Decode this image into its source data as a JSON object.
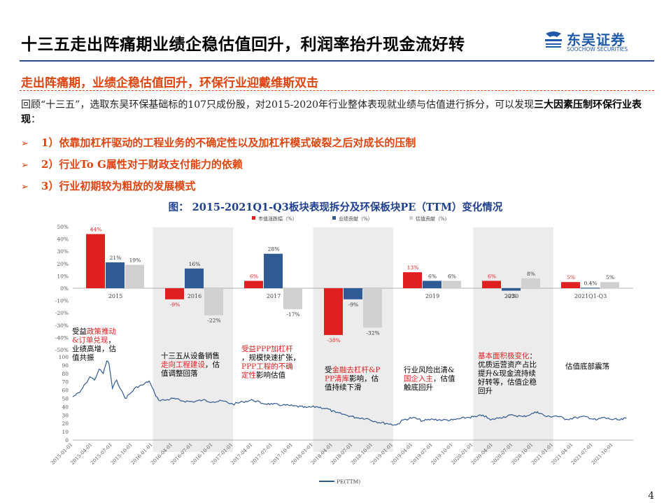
{
  "header": {
    "title": "十三五走出阵痛期业绩企稳估值回升，利润率抬升现金流好转",
    "logo_cn": "东吴证券",
    "logo_en": "SOOCHOW SECURITIES",
    "logo_mark": "SCS",
    "brand_color": "#1f5aa8"
  },
  "subtitle": "走出阵痛期，业绩企稳估值回升，环保行业迎戴维斯双击",
  "body": {
    "text_a": "回顾“十三五”，选取东吴环保基础标的107只成份股，对2015-2020年行业整体表现就业绩与估值进行拆分，可以发现",
    "text_bold": "三大因素压制环保行业表现",
    "text_end": "："
  },
  "bullets": [
    "1）依靠加杠杆驱动的工程业务的不确定性以及加杠杆模式破裂之后对成长的压制",
    "2）行业To G属性对于财政支付能力的依赖",
    "3）行业初期较为粗放的发展模式"
  ],
  "figure_title": "图： 2015-2021Q1-Q3板块表现拆分及环保板块PE（TTM）变化情况",
  "page_number": "4",
  "chart_data": [
    {
      "type": "bar",
      "legend": [
        "市值涨跌幅（%）",
        "业绩贡献（%）",
        "估值贡献（%）"
      ],
      "colors": [
        "#e02020",
        "#2f5a94",
        "#d0d0d0"
      ],
      "categories": [
        "2015",
        "2016",
        "2017",
        "2018",
        "2019",
        "2020",
        "2021Q1-Q3"
      ],
      "series": [
        {
          "name": "市值涨跌幅（%）",
          "values": [
            44,
            -9,
            6,
            -38,
            13,
            6,
            5
          ]
        },
        {
          "name": "业绩贡献（%）",
          "values": [
            21,
            16,
            28,
            -9,
            6,
            -2,
            0.4
          ]
        },
        {
          "name": "估值贡献（%）",
          "values": [
            19,
            -22,
            -17,
            -32,
            6,
            8,
            5
          ]
        }
      ],
      "value_labels": [
        [
          "44%",
          "21%",
          "19%"
        ],
        [
          "-9%",
          "16%",
          "-22%"
        ],
        [
          "6%",
          "28%",
          "-17%"
        ],
        [
          "-38%",
          "-9%",
          "-32%"
        ],
        [
          "13%",
          "6%",
          "6%"
        ],
        [
          "6%",
          "-2%",
          "8%"
        ],
        [
          "5%",
          "0.4%",
          "5%"
        ]
      ],
      "ylim": [
        -50,
        50
      ],
      "yticks": [
        "50%",
        "40%",
        "30%",
        "20%",
        "10%",
        "0%",
        "-10%",
        "-20%",
        "-30%",
        "-40%",
        "-50%"
      ]
    },
    {
      "type": "line",
      "series": [
        {
          "name": "PE(TTM)"
        }
      ],
      "line_color": "#2f5a94",
      "ylim": [
        0,
        100
      ],
      "yticks": [
        "100",
        "90",
        "80",
        "70",
        "60",
        "50",
        "40",
        "30",
        "20",
        "10",
        "0"
      ],
      "x_labels": [
        "2015-01-01",
        "2015-04-01",
        "2015-07-01",
        "2015-10-01",
        "2016-01-01",
        "2016-04-01",
        "2016-07-01",
        "2016-10-01",
        "2017-01-01",
        "2017-04-01",
        "2017-07-01",
        "2017-10-01",
        "2018-01-01",
        "2018-04-01",
        "2018-07-01",
        "2018-10-01",
        "2019-01-01",
        "2019-04-01",
        "2019-07-01",
        "2019-10-01",
        "2020-01-01",
        "2020-04-01",
        "2020-07-01",
        "2020-10-01",
        "2021-01-01",
        "2021-04-01",
        "2021-07-01",
        "2021-10-01"
      ],
      "points": [
        [
          "2015-01-01",
          52
        ],
        [
          "2015-02-01",
          57
        ],
        [
          "2015-03-01",
          68
        ],
        [
          "2015-03-20",
          76
        ],
        [
          "2015-04-10",
          72
        ],
        [
          "2015-05-01",
          85
        ],
        [
          "2015-05-20",
          80
        ],
        [
          "2015-06-05",
          95
        ],
        [
          "2015-06-15",
          92
        ],
        [
          "2015-07-01",
          62
        ],
        [
          "2015-07-20",
          72
        ],
        [
          "2015-08-10",
          60
        ],
        [
          "2015-08-28",
          50
        ],
        [
          "2015-09-20",
          56
        ],
        [
          "2015-10-20",
          64
        ],
        [
          "2015-11-15",
          66
        ],
        [
          "2015-12-15",
          71
        ],
        [
          "2016-01-10",
          56
        ],
        [
          "2016-01-28",
          48
        ],
        [
          "2016-03-01",
          48
        ],
        [
          "2016-04-01",
          50
        ],
        [
          "2016-05-15",
          47
        ],
        [
          "2016-07-01",
          46
        ],
        [
          "2016-08-15",
          48
        ],
        [
          "2016-10-01",
          46
        ],
        [
          "2016-11-15",
          47
        ],
        [
          "2016-12-31",
          43
        ],
        [
          "2017-02-15",
          46
        ],
        [
          "2017-04-01",
          48
        ],
        [
          "2017-05-15",
          44
        ],
        [
          "2017-07-01",
          43
        ],
        [
          "2017-08-15",
          42
        ],
        [
          "2017-10-01",
          41
        ],
        [
          "2017-12-01",
          39
        ],
        [
          "2018-01-15",
          40
        ],
        [
          "2018-03-01",
          38
        ],
        [
          "2018-04-15",
          33
        ],
        [
          "2018-06-01",
          30
        ],
        [
          "2018-07-15",
          27
        ],
        [
          "2018-09-01",
          26
        ],
        [
          "2018-10-15",
          22
        ],
        [
          "2018-12-01",
          20
        ],
        [
          "2019-01-15",
          18
        ],
        [
          "2019-02-15",
          24
        ],
        [
          "2019-04-01",
          27
        ],
        [
          "2019-05-15",
          23
        ],
        [
          "2019-07-01",
          25
        ],
        [
          "2019-08-15",
          24
        ],
        [
          "2019-10-01",
          24
        ],
        [
          "2019-12-01",
          27
        ],
        [
          "2020-01-15",
          28
        ],
        [
          "2020-02-15",
          30
        ],
        [
          "2020-03-20",
          24
        ],
        [
          "2020-05-01",
          27
        ],
        [
          "2020-07-01",
          30
        ],
        [
          "2020-08-15",
          28
        ],
        [
          "2020-09-20",
          31
        ],
        [
          "2020-10-20",
          34
        ],
        [
          "2020-12-01",
          28
        ],
        [
          "2021-01-15",
          29
        ],
        [
          "2021-03-01",
          25
        ],
        [
          "2021-04-15",
          27
        ],
        [
          "2021-06-01",
          28
        ],
        [
          "2021-07-15",
          24
        ],
        [
          "2021-08-15",
          27
        ],
        [
          "2021-09-20",
          25
        ],
        [
          "2021-11-01",
          24
        ],
        [
          "2021-11-30",
          26
        ]
      ],
      "shaded_periods": [
        [
          "2016-01-01",
          "2017-01-01"
        ],
        [
          "2018-01-01",
          "2019-01-01"
        ],
        [
          "2020-01-01",
          "2021-01-01"
        ]
      ],
      "annotations": [
        {
          "lines": [
            {
              "text": "受益",
              "color": "#000"
            },
            {
              "text": "政策推动&订单兑现",
              "color": "#e02020"
            },
            {
              "text": "，业绩高增，估值共振",
              "color": "#000"
            }
          ]
        },
        {
          "lines": [
            {
              "text": "十三五从设备销售",
              "color": "#000"
            },
            {
              "text": "走向工程建设",
              "color": "#e02020"
            },
            {
              "text": "，估值调整回落",
              "color": "#000"
            }
          ]
        },
        {
          "lines": [
            {
              "text": "受益PPP加杠杆",
              "color": "#e02020"
            },
            {
              "text": "，规模快速扩张，",
              "color": "#000"
            },
            {
              "text": "PPP工程的不确定性",
              "color": "#e02020"
            },
            {
              "text": "影响估值",
              "color": "#000"
            }
          ]
        },
        {
          "lines": [
            {
              "text": "受",
              "color": "#000"
            },
            {
              "text": "金融去杠杆&PPP清库",
              "color": "#e02020"
            },
            {
              "text": "影响，估值持续下滑",
              "color": "#000"
            }
          ]
        },
        {
          "lines": [
            {
              "text": "行业风险出清&",
              "color": "#000"
            },
            {
              "text": "国企入主",
              "color": "#e02020"
            },
            {
              "text": "，估值触底回升",
              "color": "#000"
            }
          ]
        },
        {
          "lines": [
            {
              "text": "基本面积极变化",
              "color": "#e02020"
            },
            {
              "text": "：优质运营资产占比提升&现金流持续好转等，估值企稳回升",
              "color": "#000"
            }
          ]
        },
        {
          "lines": [
            {
              "text": "估值底部震荡",
              "color": "#000"
            }
          ]
        }
      ]
    }
  ]
}
